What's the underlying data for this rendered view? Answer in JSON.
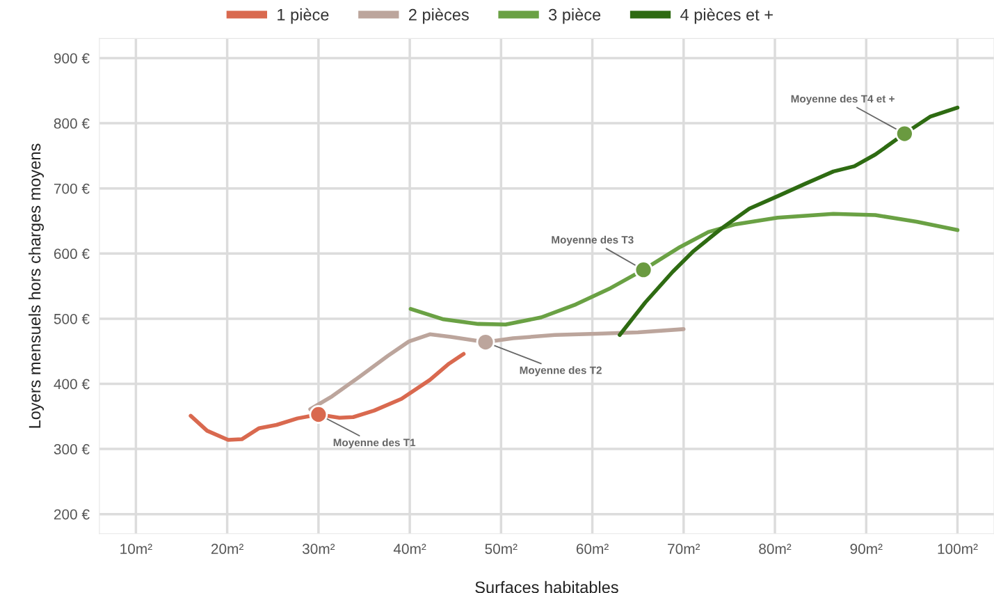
{
  "chart_data": {
    "type": "line",
    "xlabel": "Surfaces habitables",
    "ylabel": "Loyers mensuels hors charges moyens",
    "xlim": [
      6,
      104
    ],
    "ylim": [
      170,
      930
    ],
    "xticks": [
      {
        "value": 10,
        "label": "10m²"
      },
      {
        "value": 20,
        "label": "20m²"
      },
      {
        "value": 30,
        "label": "30m²"
      },
      {
        "value": 40,
        "label": "40m²"
      },
      {
        "value": 50,
        "label": "50m²"
      },
      {
        "value": 60,
        "label": "60m²"
      },
      {
        "value": 70,
        "label": "70m²"
      },
      {
        "value": 80,
        "label": "80m²"
      },
      {
        "value": 90,
        "label": "90m²"
      },
      {
        "value": 100,
        "label": "100m²"
      }
    ],
    "yticks": [
      {
        "value": 200,
        "label": "200 €"
      },
      {
        "value": 300,
        "label": "300 €"
      },
      {
        "value": 400,
        "label": "400 €"
      },
      {
        "value": 500,
        "label": "500 €"
      },
      {
        "value": 600,
        "label": "600 €"
      },
      {
        "value": 700,
        "label": "700 €"
      },
      {
        "value": 800,
        "label": "800 €"
      },
      {
        "value": 900,
        "label": "900 €"
      }
    ],
    "grid": true,
    "legend": "top",
    "marker": "none",
    "line_style": "solid",
    "series": [
      {
        "name": "1 pièce",
        "color": "#d9694f",
        "x": [
          16.0,
          17.8,
          20.1,
          21.6,
          23.5,
          25.4,
          27.7,
          30.0,
          32.3,
          33.8,
          36.1,
          39.1,
          42.2,
          44.3,
          45.9
        ],
        "values": [
          351,
          328,
          314,
          315,
          332,
          337,
          347,
          353,
          348,
          349,
          359,
          377,
          406,
          431,
          446
        ]
      },
      {
        "name": "2 pièces",
        "color": "#bca59c",
        "x": [
          29.1,
          31.5,
          34.5,
          37.6,
          39.9,
          42.2,
          44.5,
          48.3,
          51.3,
          55.9,
          60.5,
          65.0,
          70.0
        ],
        "values": [
          361,
          381,
          411,
          443,
          465,
          476,
          472,
          464,
          470,
          475,
          477,
          479,
          484
        ]
      },
      {
        "name": "3 pièce",
        "color": "#6aa144",
        "x": [
          40.1,
          43.7,
          47.5,
          50.5,
          54.4,
          58.2,
          62.0,
          65.6,
          69.6,
          72.7,
          75.7,
          80.3,
          86.4,
          91.0,
          95.5,
          100
        ],
        "values": [
          515,
          499,
          492,
          491,
          502,
          522,
          547,
          575,
          610,
          633,
          645,
          655,
          661,
          659,
          649,
          636
        ]
      },
      {
        "name": "4 pièces et +",
        "color": "#2e6b12",
        "x": [
          63.0,
          65.8,
          68.8,
          71.1,
          74.2,
          77.2,
          80.3,
          83.3,
          86.4,
          88.7,
          91.0,
          94.2,
          97.0,
          100
        ],
        "values": [
          475,
          525,
          572,
          604,
          639,
          669,
          688,
          707,
          726,
          734,
          752,
          784,
          810,
          824
        ]
      },
      {
        "type": "scatter",
        "marker": "circle",
        "color": "#d9694f",
        "x": [
          30.0
        ],
        "values": [
          353
        ]
      },
      {
        "type": "scatter",
        "marker": "circle",
        "color": "#bca59c",
        "x": [
          48.3
        ],
        "values": [
          464
        ]
      },
      {
        "type": "scatter",
        "marker": "circle",
        "color": "#6a9a40",
        "x": [
          65.6
        ],
        "values": [
          575
        ]
      },
      {
        "type": "scatter",
        "marker": "circle",
        "color": "#6a9a40",
        "x": [
          94.2
        ],
        "values": [
          784
        ]
      }
    ],
    "annotations": [
      {
        "text": "Moyenne des T1",
        "x": 30.0,
        "y": 353
      },
      {
        "text": "Moyenne des T2",
        "x": 48.3,
        "y": 464
      },
      {
        "text": "Moyenne des T3",
        "x": 65.6,
        "y": 575
      },
      {
        "text": "Moyenne des T4 et +",
        "x": 94.2,
        "y": 784
      }
    ]
  }
}
